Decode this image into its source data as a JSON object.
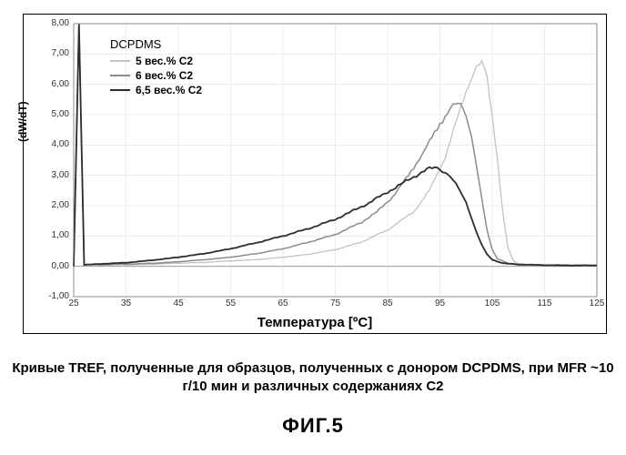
{
  "chart": {
    "type": "line",
    "ylabel": "(dW/dT)",
    "xlabel": "Температура [ºC]",
    "xlim": [
      25,
      125
    ],
    "ylim": [
      -1.0,
      8.0
    ],
    "xticks": [
      25,
      35,
      45,
      55,
      65,
      75,
      85,
      95,
      105,
      115,
      125
    ],
    "yticks": [
      "-1,00",
      "0,00",
      "1,00",
      "2,00",
      "3,00",
      "4,00",
      "5,00",
      "6,00",
      "7,00",
      "8,00"
    ],
    "ytick_values": [
      -1.0,
      0.0,
      1.0,
      2.0,
      3.0,
      4.0,
      5.0,
      6.0,
      7.0,
      8.0
    ],
    "grid_color": "#d9d9d9",
    "background_color": "#ffffff",
    "legend": {
      "title": "DCPDMS",
      "items": [
        {
          "label": "5 вес.% C2",
          "color": "#c8c0c0"
        },
        {
          "label": "6 вес.% C2",
          "color": "#8e8a8a"
        },
        {
          "label": "6,5 вес.% C2",
          "color": "#2d2d2d"
        }
      ]
    },
    "series": [
      {
        "name": "5 вес.% C2",
        "color": "#c8c0c0",
        "line_width": 1.3,
        "data": [
          [
            25,
            0.0
          ],
          [
            26,
            8.0
          ],
          [
            27,
            0.05
          ],
          [
            30,
            0.05
          ],
          [
            35,
            0.05
          ],
          [
            40,
            0.07
          ],
          [
            45,
            0.1
          ],
          [
            50,
            0.13
          ],
          [
            55,
            0.18
          ],
          [
            60,
            0.22
          ],
          [
            65,
            0.3
          ],
          [
            70,
            0.4
          ],
          [
            75,
            0.55
          ],
          [
            80,
            0.8
          ],
          [
            85,
            1.2
          ],
          [
            90,
            1.8
          ],
          [
            93,
            2.5
          ],
          [
            96,
            3.6
          ],
          [
            98,
            4.7
          ],
          [
            100,
            5.8
          ],
          [
            102,
            6.6
          ],
          [
            103,
            6.65
          ],
          [
            104,
            6.2
          ],
          [
            105,
            5.0
          ],
          [
            106,
            3.5
          ],
          [
            107,
            1.8
          ],
          [
            108,
            0.6
          ],
          [
            109,
            0.2
          ],
          [
            110,
            0.08
          ],
          [
            115,
            0.04
          ],
          [
            120,
            0.03
          ],
          [
            125,
            0.03
          ]
        ]
      },
      {
        "name": "6 вес.% C2",
        "color": "#8e8a8a",
        "line_width": 1.5,
        "data": [
          [
            25,
            0.0
          ],
          [
            26,
            8.0
          ],
          [
            27,
            0.05
          ],
          [
            30,
            0.05
          ],
          [
            35,
            0.07
          ],
          [
            40,
            0.1
          ],
          [
            45,
            0.15
          ],
          [
            50,
            0.22
          ],
          [
            55,
            0.3
          ],
          [
            60,
            0.42
          ],
          [
            65,
            0.58
          ],
          [
            70,
            0.8
          ],
          [
            75,
            1.05
          ],
          [
            80,
            1.45
          ],
          [
            83,
            1.8
          ],
          [
            86,
            2.3
          ],
          [
            89,
            3.0
          ],
          [
            92,
            3.8
          ],
          [
            95,
            4.7
          ],
          [
            97,
            5.2
          ],
          [
            98,
            5.35
          ],
          [
            99,
            5.3
          ],
          [
            100,
            5.0
          ],
          [
            101,
            4.3
          ],
          [
            102,
            3.3
          ],
          [
            103,
            2.2
          ],
          [
            104,
            1.2
          ],
          [
            105,
            0.55
          ],
          [
            106,
            0.25
          ],
          [
            108,
            0.1
          ],
          [
            112,
            0.05
          ],
          [
            120,
            0.04
          ],
          [
            125,
            0.03
          ]
        ]
      },
      {
        "name": "6,5 вес.% C2",
        "color": "#2d2d2d",
        "line_width": 1.8,
        "data": [
          [
            25,
            0.0
          ],
          [
            26,
            8.0
          ],
          [
            27,
            0.05
          ],
          [
            30,
            0.08
          ],
          [
            35,
            0.12
          ],
          [
            40,
            0.2
          ],
          [
            45,
            0.3
          ],
          [
            50,
            0.42
          ],
          [
            55,
            0.58
          ],
          [
            60,
            0.78
          ],
          [
            65,
            1.0
          ],
          [
            70,
            1.25
          ],
          [
            75,
            1.55
          ],
          [
            78,
            1.8
          ],
          [
            81,
            2.05
          ],
          [
            84,
            2.35
          ],
          [
            87,
            2.65
          ],
          [
            90,
            2.95
          ],
          [
            92,
            3.15
          ],
          [
            93,
            3.22
          ],
          [
            94,
            3.25
          ],
          [
            95,
            3.22
          ],
          [
            96,
            3.1
          ],
          [
            98,
            2.75
          ],
          [
            100,
            2.1
          ],
          [
            101,
            1.6
          ],
          [
            102,
            1.1
          ],
          [
            103,
            0.7
          ],
          [
            104,
            0.4
          ],
          [
            105,
            0.22
          ],
          [
            107,
            0.1
          ],
          [
            110,
            0.06
          ],
          [
            115,
            0.04
          ],
          [
            120,
            0.03
          ],
          [
            125,
            0.03
          ]
        ]
      }
    ]
  },
  "caption": "Кривые TREF, полученные для образцов, полученных с донором DCPDMS, при MFR ~10 г/10 мин и различных содержаниях C2",
  "figure_label": "ФИГ.5"
}
